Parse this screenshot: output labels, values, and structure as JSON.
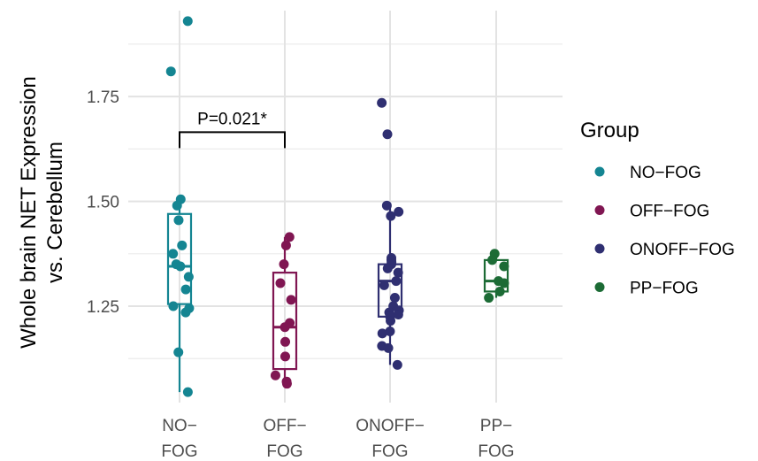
{
  "chart_data": {
    "type": "box-scatter",
    "categories": [
      "NO-FOG",
      "OFF-FOG",
      "ONOFF-FOG",
      "PP-FOG"
    ],
    "x_tick_labels": [
      [
        "NO−",
        "FOG"
      ],
      [
        "OFF−",
        "FOG"
      ],
      [
        "ONOFF−",
        "FOG"
      ],
      [
        "PP−",
        "FOG"
      ]
    ],
    "ylabel_lines": [
      "Whole brain NET Expression",
      "vs. Cerebellum"
    ],
    "ylim": [
      1.02,
      1.955
    ],
    "yticks": [
      1.25,
      1.5,
      1.75
    ],
    "ytick_labels": [
      "1.25",
      "1.50",
      "1.75"
    ],
    "grid": true,
    "legend": {
      "title": "Group",
      "placement": "right",
      "entries": [
        "NO−FOG",
        "OFF−FOG",
        "ONOFF−FOG",
        "PP−FOG"
      ]
    },
    "colors": [
      "#148592",
      "#801652",
      "#2f2f71",
      "#1c6b35"
    ],
    "series": [
      {
        "category": "NO-FOG",
        "box": {
          "q1": 1.255,
          "median": 1.345,
          "q3": 1.47,
          "whisker_low": 1.045,
          "whisker_high": 1.505
        },
        "points": [
          1.93,
          1.81,
          1.505,
          1.49,
          1.455,
          1.395,
          1.375,
          1.35,
          1.345,
          1.32,
          1.29,
          1.25,
          1.245,
          1.235,
          1.14,
          1.045
        ]
      },
      {
        "category": "OFF-FOG",
        "box": {
          "q1": 1.1,
          "median": 1.2,
          "q3": 1.33,
          "whisker_low": 1.065,
          "whisker_high": 1.415
        },
        "points": [
          1.415,
          1.395,
          1.35,
          1.305,
          1.265,
          1.21,
          1.2,
          1.165,
          1.13,
          1.085,
          1.07,
          1.065
        ]
      },
      {
        "category": "ONOFF-FOG",
        "box": {
          "q1": 1.225,
          "median": 1.31,
          "q3": 1.35,
          "whisker_low": 1.11,
          "whisker_high": 1.49
        },
        "points": [
          1.735,
          1.66,
          1.49,
          1.475,
          1.465,
          1.365,
          1.36,
          1.355,
          1.35,
          1.34,
          1.33,
          1.31,
          1.3,
          1.27,
          1.25,
          1.24,
          1.235,
          1.23,
          1.225,
          1.215,
          1.19,
          1.185,
          1.155,
          1.15,
          1.11
        ]
      },
      {
        "category": "PP-FOG",
        "box": {
          "q1": 1.285,
          "median": 1.31,
          "q3": 1.36,
          "whisker_low": 1.27,
          "whisker_high": 1.375
        },
        "points": [
          1.375,
          1.36,
          1.345,
          1.31,
          1.305,
          1.285,
          1.27
        ]
      }
    ],
    "annotations": [
      {
        "text": "P=0.021*",
        "from": "NO-FOG",
        "to": "OFF-FOG",
        "y": 1.665
      }
    ]
  }
}
